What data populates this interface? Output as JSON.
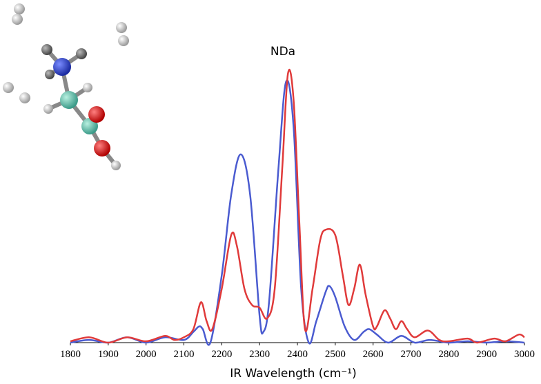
{
  "chart_data": {
    "type": "line",
    "title": "NDa",
    "xlabel": "IR Wavelength (cm⁻¹)",
    "xlim": [
      1800,
      3000
    ],
    "ylim": [
      0,
      1.12
    ],
    "xticks": [
      1800,
      1900,
      2000,
      2100,
      2200,
      2300,
      2400,
      2500,
      2600,
      2700,
      2800,
      2900,
      3000
    ],
    "series": [
      {
        "color": "#4a5bd0",
        "x": [
          1800,
          1850,
          1900,
          1950,
          2000,
          2050,
          2100,
          2125,
          2140,
          2150,
          2170,
          2200,
          2225,
          2250,
          2275,
          2300,
          2310,
          2325,
          2350,
          2370,
          2390,
          2410,
          2430,
          2450,
          2475,
          2485,
          2500,
          2525,
          2550,
          2575,
          2590,
          2610,
          2640,
          2675,
          2710,
          2750,
          2800,
          2850,
          2900,
          2950,
          3000
        ],
        "values": [
          0,
          0.01,
          0,
          0.02,
          0,
          0.02,
          0.01,
          0.04,
          0.06,
          0.05,
          0,
          0.25,
          0.55,
          0.7,
          0.55,
          0.1,
          0.04,
          0.15,
          0.65,
          0.97,
          0.8,
          0.2,
          0,
          0.08,
          0.19,
          0.21,
          0.17,
          0.06,
          0.01,
          0.04,
          0.05,
          0.03,
          0,
          0.025,
          0,
          0.01,
          0,
          0.005,
          0,
          0.005,
          0
        ]
      },
      {
        "color": "#e03a3a",
        "x": [
          1800,
          1850,
          1900,
          1950,
          2000,
          2050,
          2075,
          2100,
          2125,
          2145,
          2160,
          2175,
          2200,
          2225,
          2240,
          2260,
          2280,
          2300,
          2320,
          2340,
          2360,
          2375,
          2390,
          2405,
          2420,
          2440,
          2460,
          2475,
          2500,
          2520,
          2535,
          2550,
          2565,
          2580,
          2600,
          2610,
          2630,
          2645,
          2660,
          2675,
          2690,
          2710,
          2745,
          2775,
          2800,
          2850,
          2875,
          2920,
          2950,
          2985,
          3000
        ],
        "values": [
          0.005,
          0.02,
          0,
          0.02,
          0.005,
          0.025,
          0.01,
          0.02,
          0.05,
          0.15,
          0.08,
          0.05,
          0.2,
          0.4,
          0.36,
          0.2,
          0.14,
          0.13,
          0.09,
          0.2,
          0.65,
          1,
          0.9,
          0.45,
          0.05,
          0.2,
          0.38,
          0.42,
          0.4,
          0.25,
          0.14,
          0.2,
          0.29,
          0.18,
          0.06,
          0.06,
          0.12,
          0.09,
          0.05,
          0.08,
          0.05,
          0.02,
          0.045,
          0.01,
          0.005,
          0.015,
          0,
          0.015,
          0.005,
          0.03,
          0.02
        ]
      }
    ]
  }
}
